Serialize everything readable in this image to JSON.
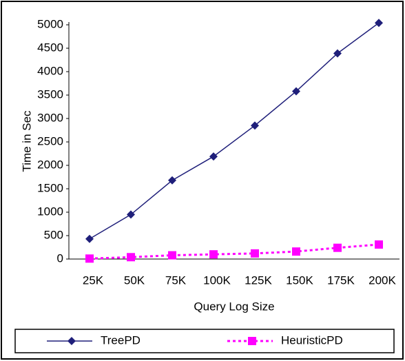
{
  "chart_data": {
    "type": "line",
    "x_label": "Query Log Size",
    "y_label": "Time in Sec",
    "categories": [
      "25K",
      "50K",
      "75K",
      "100K",
      "125K",
      "150K",
      "175K",
      "200K"
    ],
    "series": [
      {
        "name": "TreePD",
        "color": "#1f1f7a",
        "marker": "diamond",
        "dash": "solid",
        "values": [
          430,
          950,
          1680,
          2190,
          2850,
          3580,
          4390,
          5040
        ]
      },
      {
        "name": "HeuristicPD",
        "color": "#ff00ff",
        "marker": "square",
        "dash": "dotted",
        "values": [
          10,
          40,
          80,
          100,
          120,
          160,
          240,
          310
        ]
      }
    ],
    "ylim": [
      0,
      5000
    ],
    "yticks": [
      0,
      500,
      1000,
      1500,
      2000,
      2500,
      3000,
      3500,
      4000,
      4500,
      5000
    ],
    "grid": false,
    "legend": "bottom"
  }
}
